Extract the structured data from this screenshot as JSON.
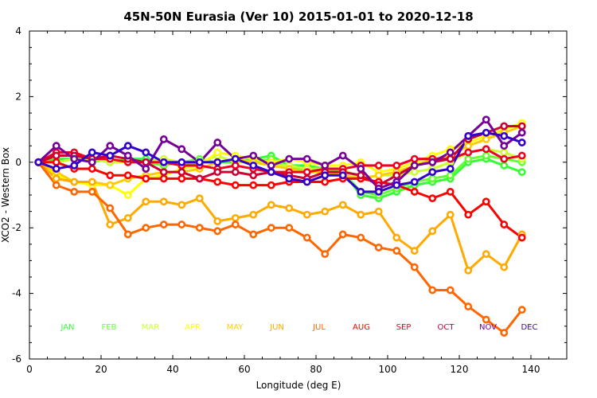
{
  "chart_data": {
    "type": "line",
    "title": "45N-50N Eurasia (Ver 10)   2015-01-01 to 2020-12-18",
    "xlabel": "Longitude (deg E)",
    "ylabel": "XCO2 - Western Box",
    "xlim": [
      0,
      150
    ],
    "ylim": [
      -6,
      4
    ],
    "xticks": [
      "0",
      "20",
      "40",
      "60",
      "80",
      "100",
      "120",
      "140"
    ],
    "yticks": [
      "-6",
      "-4",
      "-2",
      "0",
      "2",
      "4"
    ],
    "x": [
      2.5,
      7.5,
      12.5,
      17.5,
      22.5,
      27.5,
      32.5,
      37.5,
      42.5,
      47.5,
      52.5,
      57.5,
      62.5,
      67.5,
      72.5,
      77.5,
      82.5,
      87.5,
      92.5,
      97.5,
      102.5,
      107.5,
      112.5,
      117.5,
      122.5,
      127.5,
      132.5,
      137.5
    ],
    "grid": false,
    "legend": "bottom",
    "series": [
      {
        "name": "JAN",
        "color": "#33ff33",
        "values": [
          0,
          0.1,
          0.1,
          0.1,
          0.0,
          0.1,
          0.1,
          0.0,
          -0.1,
          0.0,
          0.0,
          0.0,
          0.1,
          0.2,
          -0.1,
          -0.1,
          -0.2,
          -0.3,
          -1.0,
          -1.1,
          -0.9,
          -0.7,
          -0.6,
          -0.5,
          0.0,
          0.1,
          -0.1,
          -0.3
        ]
      },
      {
        "name": "FEB",
        "color": "#66ff33",
        "values": [
          0,
          0.0,
          0.1,
          0.0,
          0.1,
          0.0,
          0.0,
          -0.1,
          0.0,
          0.1,
          0.0,
          0.1,
          0.0,
          0.1,
          -0.2,
          -0.2,
          -0.2,
          -0.3,
          -0.9,
          -1.0,
          -0.8,
          -0.6,
          -0.5,
          -0.4,
          0.1,
          0.2,
          0.1,
          0.0
        ]
      },
      {
        "name": "MAR",
        "color": "#ccff33",
        "values": [
          0,
          0.0,
          0.1,
          0.1,
          0.0,
          0.0,
          0.0,
          0.1,
          0.0,
          0.0,
          0.2,
          0.0,
          0.0,
          -0.1,
          -0.1,
          -0.2,
          -0.2,
          -0.2,
          -0.5,
          -0.4,
          -0.4,
          -0.3,
          -0.2,
          0.0,
          0.3,
          0.4,
          0.3,
          0.1
        ]
      },
      {
        "name": "APR",
        "color": "#ffff00",
        "values": [
          0,
          -0.4,
          -0.6,
          -0.7,
          -0.7,
          -1.0,
          -0.5,
          -0.4,
          -0.2,
          -0.1,
          0.3,
          0.2,
          0.1,
          0.0,
          0.1,
          0.0,
          -0.1,
          -0.1,
          0.0,
          -0.3,
          -0.2,
          0.0,
          0.2,
          0.4,
          0.6,
          0.8,
          1.0,
          1.2
        ]
      },
      {
        "name": "MAY",
        "color": "#ffcc00",
        "values": [
          0,
          -0.3,
          -0.6,
          -0.6,
          -0.7,
          -0.5,
          -0.4,
          -0.3,
          -0.3,
          -0.2,
          0.0,
          0.1,
          0.0,
          -0.1,
          -0.2,
          -0.3,
          -0.3,
          -0.4,
          -0.5,
          -0.4,
          -0.3,
          -0.1,
          0.1,
          0.2,
          0.5,
          0.7,
          0.9,
          1.1
        ]
      },
      {
        "name": "JUN",
        "color": "#ffaa00",
        "values": [
          0,
          -0.5,
          -0.6,
          -0.6,
          -1.9,
          -1.7,
          -1.2,
          -1.2,
          -1.3,
          -1.1,
          -1.8,
          -1.7,
          -1.6,
          -1.3,
          -1.4,
          -1.6,
          -1.5,
          -1.3,
          -1.6,
          -1.5,
          -2.3,
          -2.7,
          -2.1,
          -1.6,
          -3.3,
          -2.8,
          -3.2,
          -2.2
        ]
      },
      {
        "name": "JUL",
        "color": "#ff6600",
        "values": [
          0,
          -0.7,
          -0.9,
          -0.9,
          -1.4,
          -2.2,
          -2.0,
          -1.9,
          -1.9,
          -2.0,
          -2.1,
          -1.9,
          -2.2,
          -2.0,
          -2.0,
          -2.3,
          -2.8,
          -2.2,
          -2.3,
          -2.6,
          -2.7,
          -3.2,
          -3.9,
          -3.9,
          -4.4,
          -4.8,
          -5.2,
          -4.5
        ]
      },
      {
        "name": "AUG",
        "color": "#ff0000",
        "values": [
          0,
          0.0,
          -0.2,
          -0.2,
          -0.4,
          -0.4,
          -0.5,
          -0.5,
          -0.5,
          -0.5,
          -0.6,
          -0.7,
          -0.7,
          -0.7,
          -0.6,
          -0.6,
          -0.6,
          -0.5,
          -0.5,
          -0.6,
          -0.7,
          -0.9,
          -1.1,
          -0.9,
          -1.6,
          -1.2,
          -1.9,
          -2.3
        ]
      },
      {
        "name": "SEP",
        "color": "#ee0022",
        "values": [
          0,
          0.3,
          0.3,
          0.1,
          0.1,
          0.0,
          0.0,
          0.0,
          -0.1,
          -0.1,
          -0.2,
          -0.1,
          -0.2,
          -0.3,
          -0.3,
          -0.3,
          -0.2,
          -0.2,
          -0.1,
          -0.1,
          -0.1,
          0.1,
          0.1,
          0.1,
          0.3,
          0.4,
          0.1,
          0.2
        ]
      },
      {
        "name": "OCT",
        "color": "#cc0033",
        "values": [
          0,
          0.2,
          0.2,
          0.1,
          0.2,
          0.1,
          0.0,
          -0.3,
          -0.3,
          -0.5,
          -0.3,
          -0.3,
          -0.4,
          -0.3,
          -0.4,
          -0.5,
          -0.3,
          -0.3,
          -0.4,
          -0.7,
          -0.4,
          -0.1,
          0.0,
          0.1,
          0.7,
          0.9,
          1.1,
          1.1
        ]
      },
      {
        "name": "NOV",
        "color": "#770099",
        "values": [
          0,
          0.5,
          0.1,
          0.0,
          0.5,
          0.2,
          -0.2,
          0.7,
          0.4,
          0.0,
          0.6,
          0.1,
          0.2,
          -0.1,
          0.1,
          0.1,
          -0.1,
          0.2,
          -0.2,
          -0.8,
          -0.6,
          -0.1,
          0.0,
          0.3,
          0.8,
          1.3,
          0.5,
          0.9
        ]
      },
      {
        "name": "DEC",
        "color": "#3300cc",
        "values": [
          0,
          -0.2,
          -0.1,
          0.3,
          0.2,
          0.5,
          0.3,
          0.0,
          0.0,
          0.0,
          0.0,
          0.1,
          -0.1,
          -0.3,
          -0.5,
          -0.6,
          -0.4,
          -0.4,
          -0.9,
          -0.9,
          -0.7,
          -0.6,
          -0.3,
          -0.2,
          0.8,
          0.9,
          0.8,
          0.6
        ]
      }
    ]
  }
}
